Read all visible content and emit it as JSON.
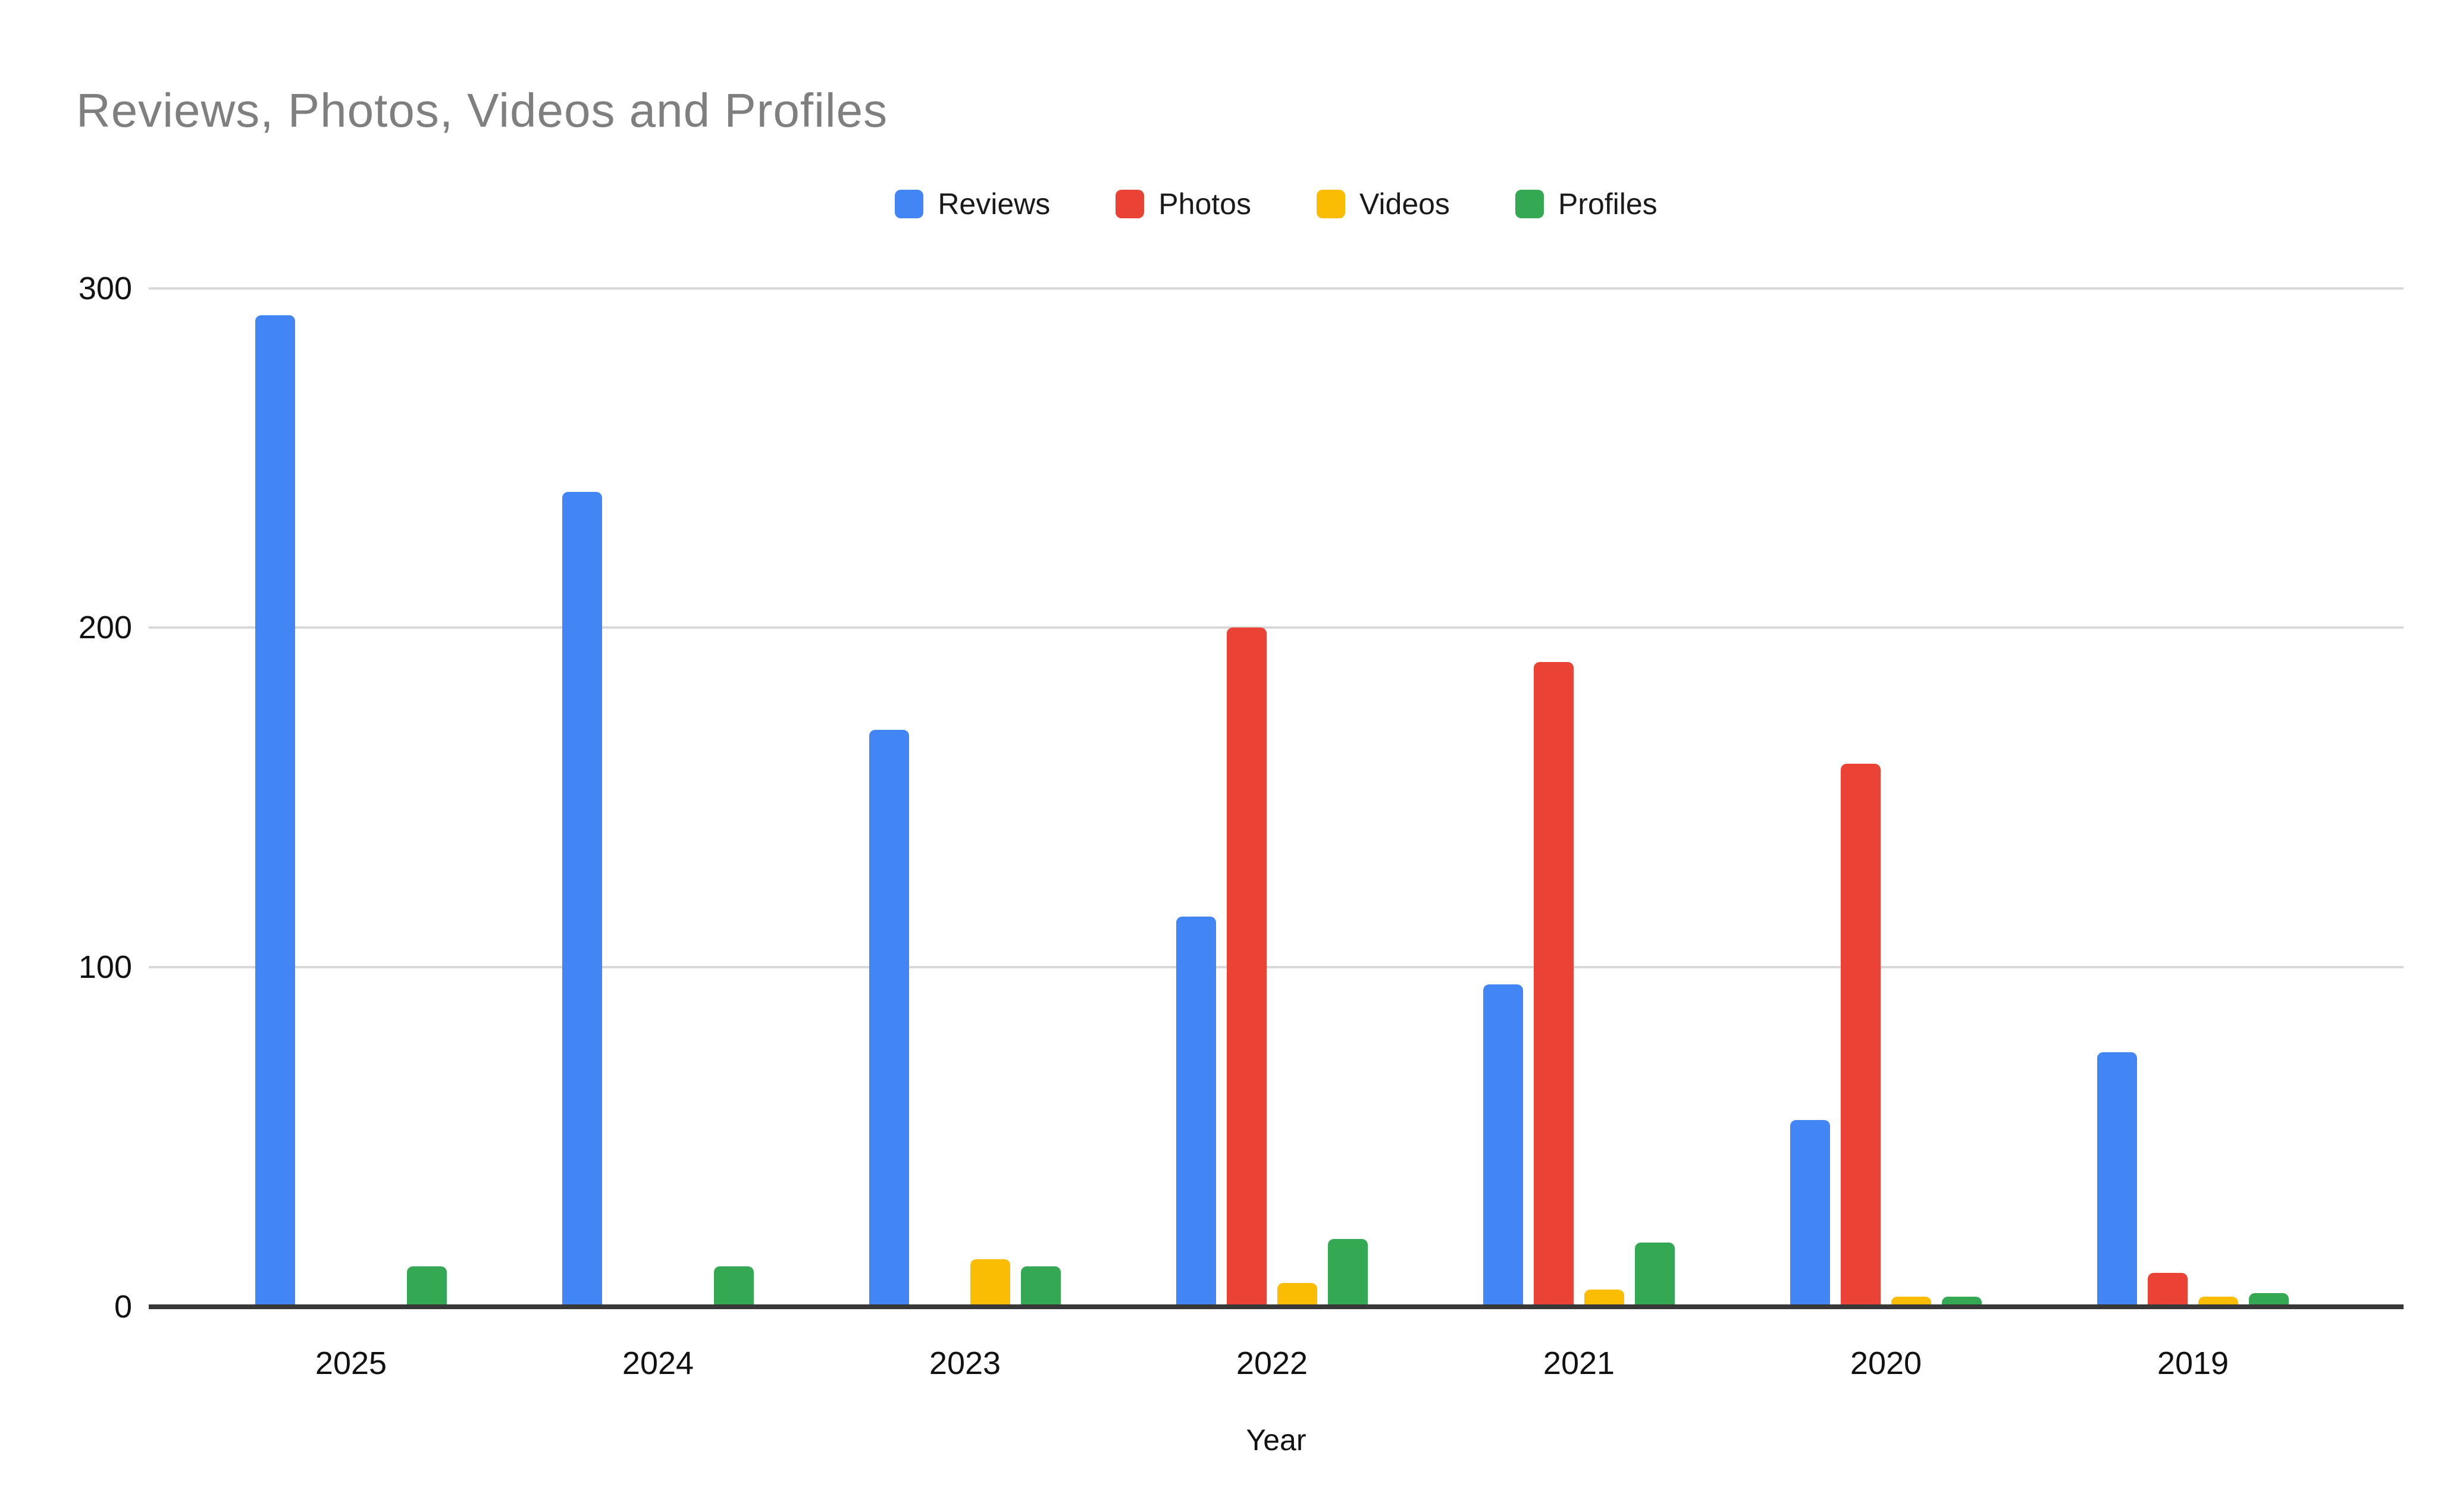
{
  "chart": {
    "title": "Reviews, Photos, Videos and Profiles"
  },
  "chart_data": {
    "type": "bar",
    "title": "Reviews, Photos, Videos and Profiles",
    "categories": [
      "2025",
      "2024",
      "2023",
      "2022",
      "2021",
      "2020",
      "2019"
    ],
    "series": [
      {
        "name": "Reviews",
        "color": "#4285F4",
        "values": [
          292,
          240,
          170,
          115,
          95,
          55,
          75
        ]
      },
      {
        "name": "Photos",
        "color": "#EA4335",
        "values": [
          0,
          0,
          0,
          200,
          190,
          160,
          10
        ]
      },
      {
        "name": "Videos",
        "color": "#FBBC04",
        "values": [
          0,
          0,
          14,
          7,
          5,
          3,
          3
        ]
      },
      {
        "name": "Profiles",
        "color": "#34A853",
        "values": [
          12,
          12,
          12,
          20,
          19,
          3,
          4
        ]
      }
    ],
    "xlabel": "Year",
    "ylabel": "",
    "ylim": [
      0,
      300
    ],
    "yticks": [
      300,
      200,
      100,
      0
    ],
    "grid": true,
    "legend_position": "top"
  }
}
